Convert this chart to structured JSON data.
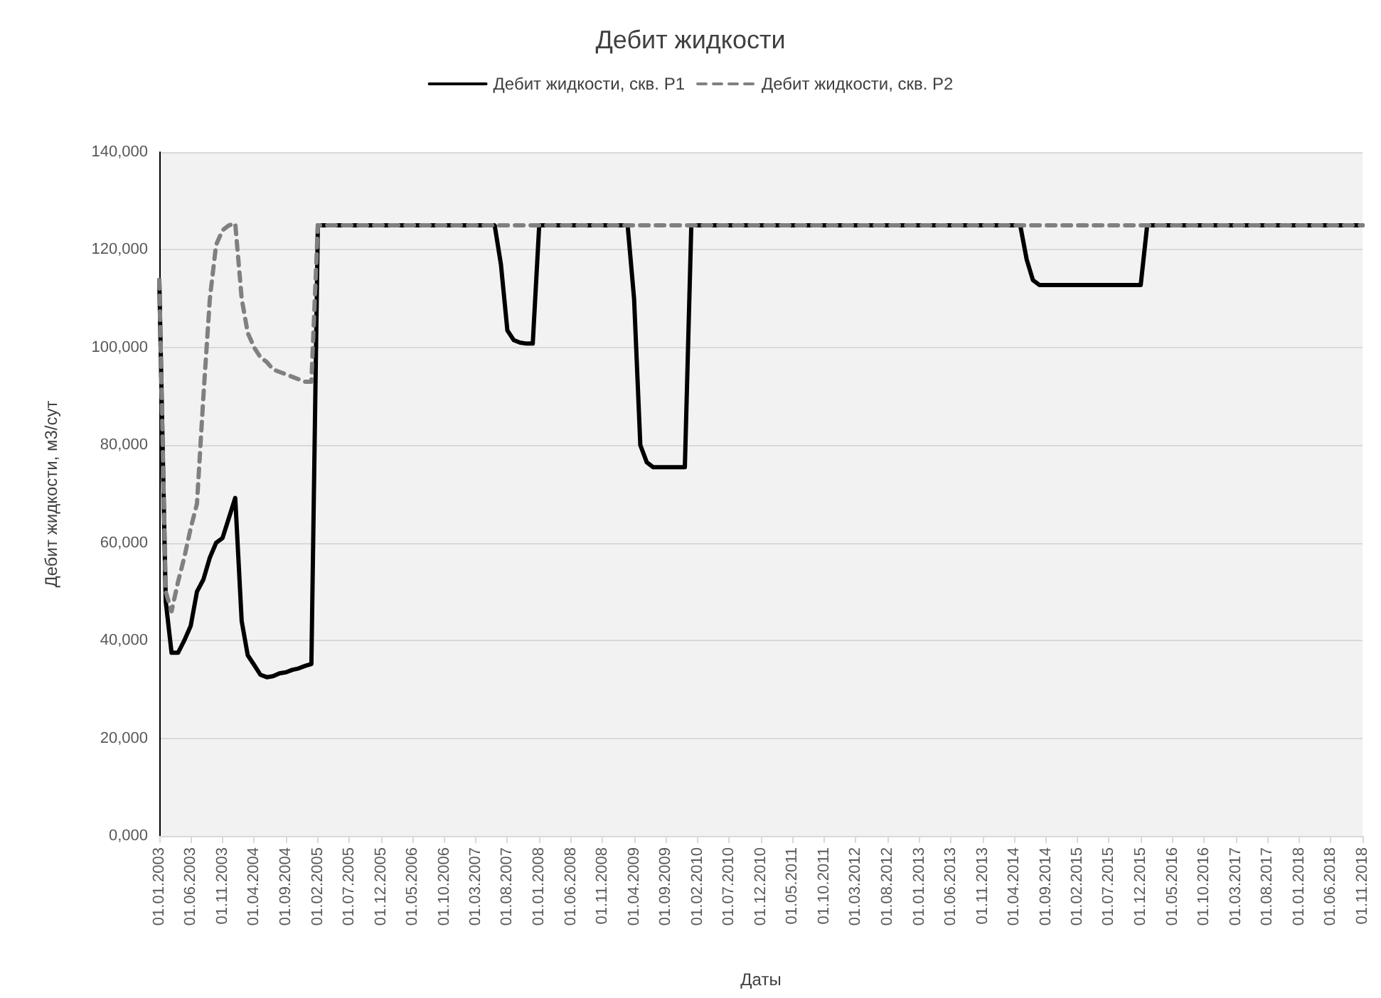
{
  "chart_data": {
    "type": "line",
    "title": "Дебит жидкости",
    "xlabel": "Даты",
    "ylabel": "Дебит жидкости, м3/сут",
    "legend": "top",
    "grid": "y",
    "marker": "none",
    "xlim": [
      "2003-01",
      "2018-11"
    ],
    "xticks": [
      {
        "value": "2003-01",
        "label": "01.01.2003"
      },
      {
        "value": "2003-06",
        "label": "01.06.2003"
      },
      {
        "value": "2003-11",
        "label": "01.11.2003"
      },
      {
        "value": "2004-04",
        "label": "01.04.2004"
      },
      {
        "value": "2004-09",
        "label": "01.09.2004"
      },
      {
        "value": "2005-02",
        "label": "01.02.2005"
      },
      {
        "value": "2005-07",
        "label": "01.07.2005"
      },
      {
        "value": "2005-12",
        "label": "01.12.2005"
      },
      {
        "value": "2006-05",
        "label": "01.05.2006"
      },
      {
        "value": "2006-10",
        "label": "01.10.2006"
      },
      {
        "value": "2007-03",
        "label": "01.03.2007"
      },
      {
        "value": "2007-08",
        "label": "01.08.2007"
      },
      {
        "value": "2008-01",
        "label": "01.01.2008"
      },
      {
        "value": "2008-06",
        "label": "01.06.2008"
      },
      {
        "value": "2008-11",
        "label": "01.11.2008"
      },
      {
        "value": "2009-04",
        "label": "01.04.2009"
      },
      {
        "value": "2009-09",
        "label": "01.09.2009"
      },
      {
        "value": "2010-02",
        "label": "01.02.2010"
      },
      {
        "value": "2010-07",
        "label": "01.07.2010"
      },
      {
        "value": "2010-12",
        "label": "01.12.2010"
      },
      {
        "value": "2011-05",
        "label": "01.05.2011"
      },
      {
        "value": "2011-10",
        "label": "01.10.2011"
      },
      {
        "value": "2012-03",
        "label": "01.03.2012"
      },
      {
        "value": "2012-08",
        "label": "01.08.2012"
      },
      {
        "value": "2013-01",
        "label": "01.01.2013"
      },
      {
        "value": "2013-06",
        "label": "01.06.2013"
      },
      {
        "value": "2013-11",
        "label": "01.11.2013"
      },
      {
        "value": "2014-04",
        "label": "01.04.2014"
      },
      {
        "value": "2014-09",
        "label": "01.09.2014"
      },
      {
        "value": "2015-02",
        "label": "01.02.2015"
      },
      {
        "value": "2015-07",
        "label": "01.07.2015"
      },
      {
        "value": "2015-12",
        "label": "01.12.2015"
      },
      {
        "value": "2016-05",
        "label": "01.05.2016"
      },
      {
        "value": "2016-10",
        "label": "01.10.2016"
      },
      {
        "value": "2017-03",
        "label": "01.03.2017"
      },
      {
        "value": "2017-08",
        "label": "01.08.2017"
      },
      {
        "value": "2018-01",
        "label": "01.01.2018"
      },
      {
        "value": "2018-06",
        "label": "01.06.2018"
      },
      {
        "value": "2018-11",
        "label": "01.11.2018"
      }
    ],
    "ylim": [
      0,
      140000
    ],
    "yticks": [
      {
        "value": 0,
        "label": "0,000"
      },
      {
        "value": 20000,
        "label": "20,000"
      },
      {
        "value": 40000,
        "label": "40,000"
      },
      {
        "value": 60000,
        "label": "60,000"
      },
      {
        "value": 80000,
        "label": "80,000"
      },
      {
        "value": 100000,
        "label": "100,000"
      },
      {
        "value": 120000,
        "label": "120,000"
      },
      {
        "value": 140000,
        "label": "140,000"
      }
    ],
    "series": [
      {
        "name": "Дебит жидкости, скв. P1",
        "color": "#000000",
        "line_style": "solid",
        "x": [
          "2003-01",
          "2003-02",
          "2003-03",
          "2003-04",
          "2003-05",
          "2003-06",
          "2003-07",
          "2003-08",
          "2003-09",
          "2003-10",
          "2003-11",
          "2004-01",
          "2004-02",
          "2004-03",
          "2004-04",
          "2004-05",
          "2004-06",
          "2004-07",
          "2004-08",
          "2004-09",
          "2004-10",
          "2004-11",
          "2004-12",
          "2005-01",
          "2005-02",
          "2007-06",
          "2007-07",
          "2007-08",
          "2007-09",
          "2007-10",
          "2007-11",
          "2007-12",
          "2008-01",
          "2009-03",
          "2009-04",
          "2009-05",
          "2009-06",
          "2009-07",
          "2009-12",
          "2010-01",
          "2014-05",
          "2014-06",
          "2014-07",
          "2014-08",
          "2015-12",
          "2016-01",
          "2018-11"
        ],
        "values": [
          113800,
          48000,
          37500,
          37500,
          40000,
          43000,
          50000,
          52500,
          57000,
          60000,
          61000,
          69200,
          44000,
          37000,
          35000,
          33000,
          32500,
          32700,
          33300,
          33500,
          34000,
          34300,
          34800,
          35200,
          125000,
          125000,
          117000,
          103500,
          101500,
          101000,
          100800,
          100800,
          125000,
          125000,
          110000,
          80000,
          76500,
          75500,
          75500,
          125000,
          125000,
          118000,
          113800,
          112800,
          112800,
          125000,
          125000
        ]
      },
      {
        "name": "Дебит жидкости, скв. P2",
        "color": "#808080",
        "line_style": "dashed",
        "x": [
          "2003-01",
          "2003-02",
          "2003-03",
          "2003-04",
          "2003-05",
          "2003-06",
          "2003-07",
          "2003-08",
          "2003-09",
          "2003-10",
          "2003-11",
          "2003-12",
          "2004-01",
          "2004-02",
          "2004-03",
          "2004-04",
          "2004-05",
          "2004-06",
          "2004-07",
          "2004-08",
          "2004-09",
          "2004-10",
          "2004-11",
          "2004-12",
          "2005-01",
          "2005-02",
          "2018-11"
        ],
        "values": [
          113800,
          50000,
          46000,
          52000,
          57000,
          63000,
          68000,
          90000,
          110000,
          121000,
          124000,
          125000,
          125400,
          110000,
          103000,
          100000,
          98000,
          97000,
          95500,
          95000,
          94500,
          94000,
          93500,
          93000,
          93000,
          125000,
          125000
        ]
      }
    ]
  }
}
